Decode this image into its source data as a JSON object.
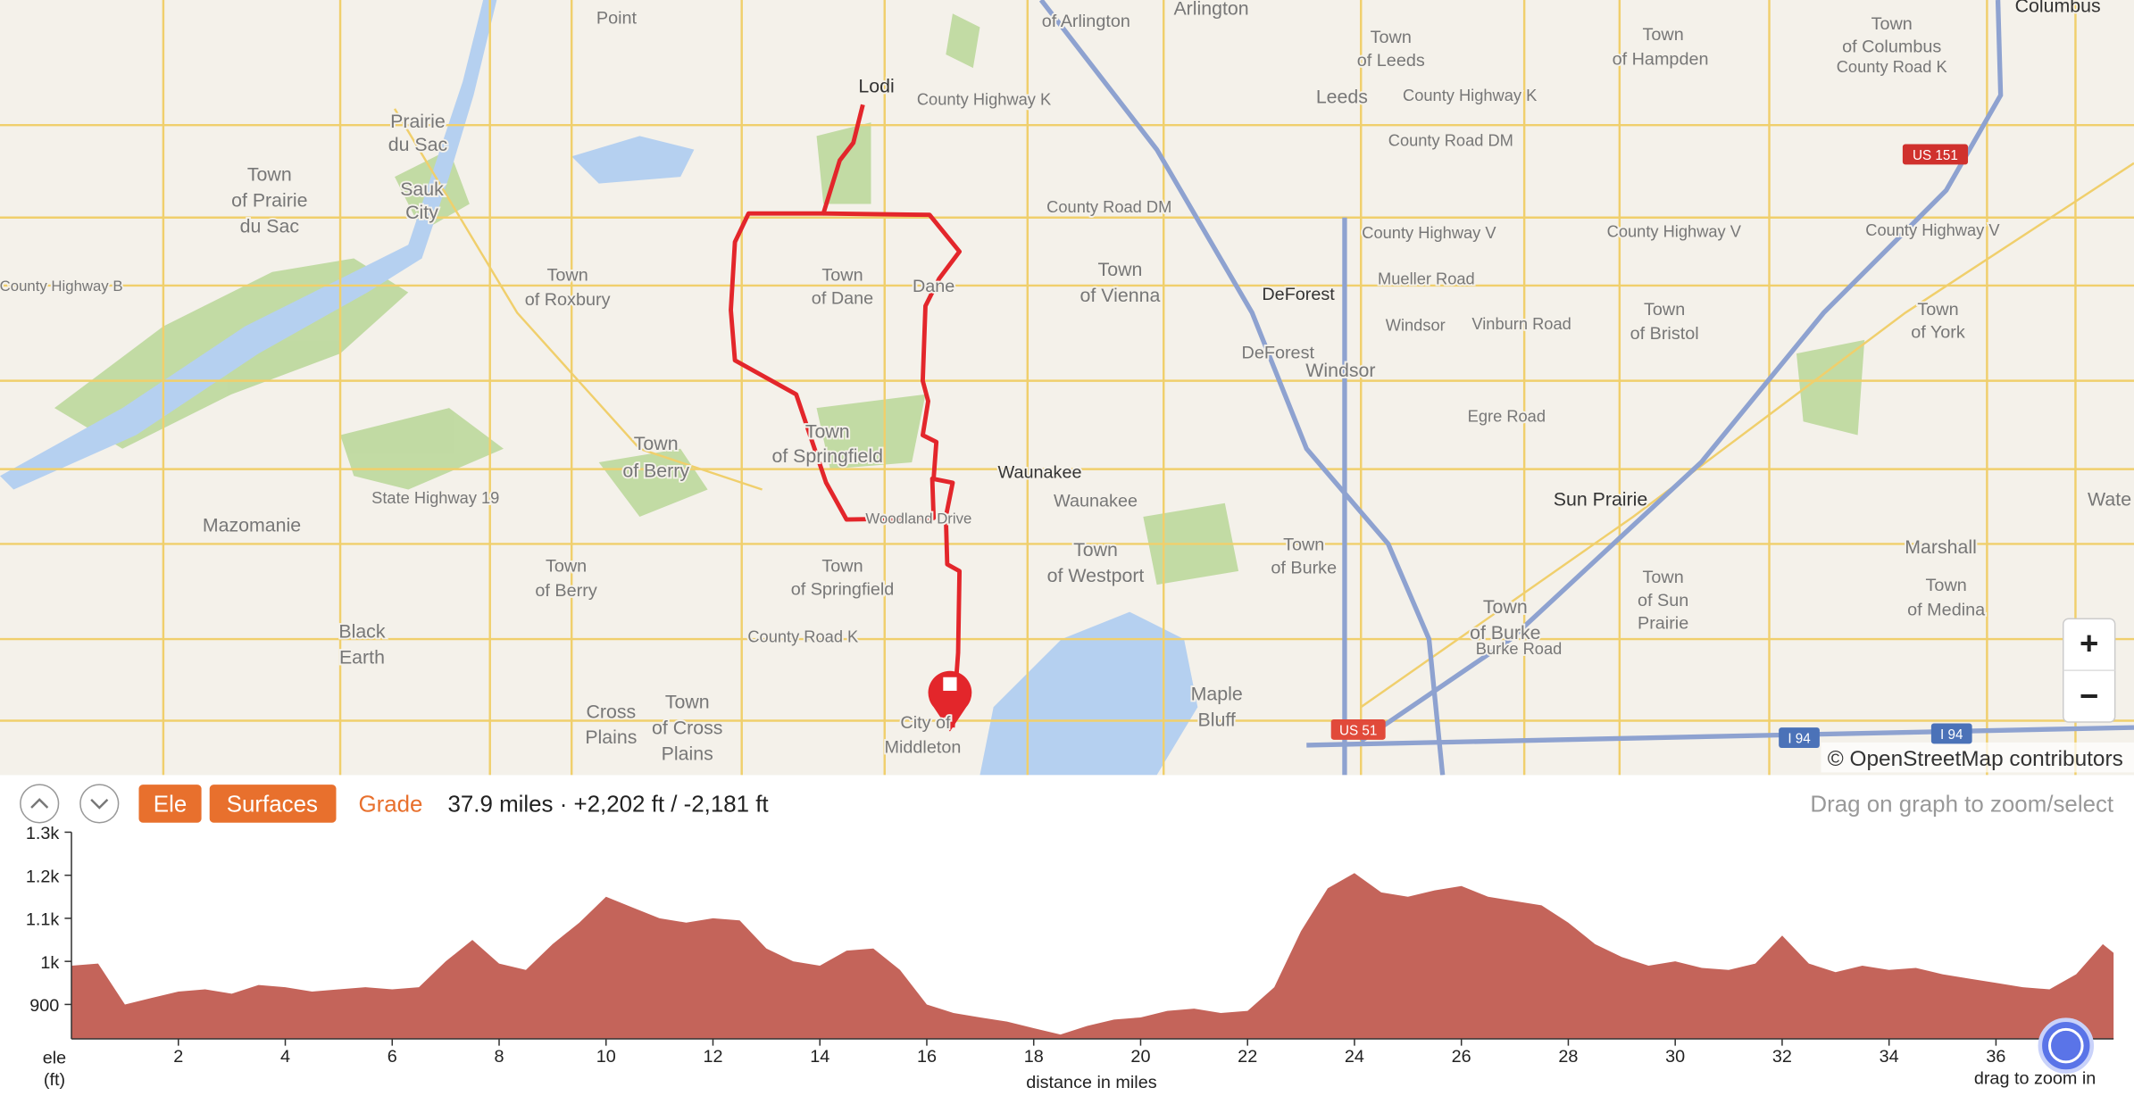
{
  "map": {
    "labels": [
      "of Arlington",
      "Arlington",
      "Point",
      "Lodi",
      "County Highway K",
      "Town",
      "of Leeds",
      "Leeds",
      "County Highway K",
      "County Road DM",
      "Town",
      "of Hampden",
      "Town",
      "of Columbus",
      "County Road K",
      "Columbus",
      "Town",
      "of Prairie",
      "du Sac",
      "Prairie",
      "du Sac",
      "Sauk",
      "City",
      "County Highway B",
      "Town",
      "of Roxbury",
      "Town",
      "of Dane",
      "Dane",
      "County Road DM",
      "Town",
      "of Vienna",
      "DeForest",
      "Mueller Road",
      "County Highway V",
      "County Highway V",
      "County Highway V",
      "Windsor",
      "Vinburn Road",
      "Town",
      "of Bristol",
      "Town",
      "of York",
      "DeForest",
      "Windsor",
      "Egre Road",
      "Town",
      "of Berry",
      "Town",
      "of Springfield",
      "Waunakee",
      "Waunakee",
      "Sun Prairie",
      "Marshall",
      "Wate",
      "Mazomanie",
      "State Highway 19",
      "Woodland Drive",
      "Town",
      "of Westport",
      "Town",
      "of Burke",
      "Town",
      "of Berry",
      "Town",
      "of Springfield",
      "Town",
      "of Sun",
      "Prairie",
      "Town",
      "of Medina",
      "Black",
      "Earth",
      "County Road K",
      "Town",
      "of Burke",
      "Burke Road",
      "Cross",
      "Plains",
      "Town",
      "of Cross",
      "Plains",
      "Maple",
      "Bluff",
      "City of",
      "Middleton",
      "US 51",
      "US 151",
      "I 94",
      "I 94"
    ],
    "attribution": "© OpenStreetMap contributors",
    "zoom_in": "+",
    "zoom_out": "−"
  },
  "toolbar": {
    "tabs": [
      "Ele",
      "Surfaces",
      "Grade"
    ],
    "stats": "37.9 miles · +2,202 ft / -2,181 ft",
    "hint": "Drag on graph to zoom/select"
  },
  "chart_data": {
    "type": "area",
    "color": "#c4645a",
    "y_label": [
      "ele",
      "(ft)"
    ],
    "x_label": "distance in miles",
    "hint": "drag to zoom in",
    "x": [
      0,
      0.5,
      1,
      1.5,
      2,
      2.5,
      3,
      3.5,
      4,
      4.5,
      5,
      5.5,
      6,
      6.5,
      7,
      7.5,
      8,
      8.5,
      9,
      9.5,
      10,
      10.5,
      11,
      11.5,
      12,
      12.5,
      13,
      13.5,
      14,
      14.5,
      15,
      15.5,
      16,
      16.5,
      17,
      17.5,
      18,
      18.5,
      19,
      19.5,
      20,
      20.5,
      21,
      21.5,
      22,
      22.5,
      23,
      23.5,
      24,
      24.5,
      25,
      25.5,
      26,
      26.5,
      27,
      27.5,
      28,
      28.5,
      29,
      29.5,
      30,
      30.5,
      31,
      31.5,
      32,
      32.5,
      33,
      33.5,
      34,
      34.5,
      35,
      35.5,
      36,
      36.5,
      37,
      37.5,
      38,
      38.2
    ],
    "values": [
      990,
      995,
      900,
      915,
      930,
      935,
      925,
      945,
      940,
      930,
      935,
      940,
      935,
      940,
      1000,
      1050,
      995,
      980,
      1040,
      1090,
      1150,
      1125,
      1100,
      1090,
      1100,
      1095,
      1030,
      1000,
      990,
      1025,
      1030,
      980,
      900,
      880,
      870,
      860,
      845,
      830,
      850,
      865,
      870,
      885,
      890,
      880,
      885,
      940,
      1070,
      1170,
      1205,
      1160,
      1150,
      1165,
      1175,
      1150,
      1140,
      1130,
      1090,
      1040,
      1010,
      990,
      1000,
      985,
      980,
      995,
      1060,
      995,
      975,
      990,
      980,
      985,
      970,
      960,
      950,
      940,
      935,
      970,
      1040,
      1020
    ],
    "xlim": [
      0,
      38.2
    ],
    "xticks": [
      2,
      4,
      6,
      8,
      10,
      12,
      14,
      16,
      18,
      20,
      22,
      24,
      26,
      28,
      30,
      32,
      34,
      36
    ],
    "ylim": [
      820,
      1300
    ],
    "yticks": [
      900,
      {
        "value": 1000,
        "label": "1k"
      },
      {
        "value": 1100,
        "label": "1.1k"
      },
      {
        "value": 1200,
        "label": "1.2k"
      },
      {
        "value": 1300,
        "label": "1.3k"
      }
    ]
  }
}
